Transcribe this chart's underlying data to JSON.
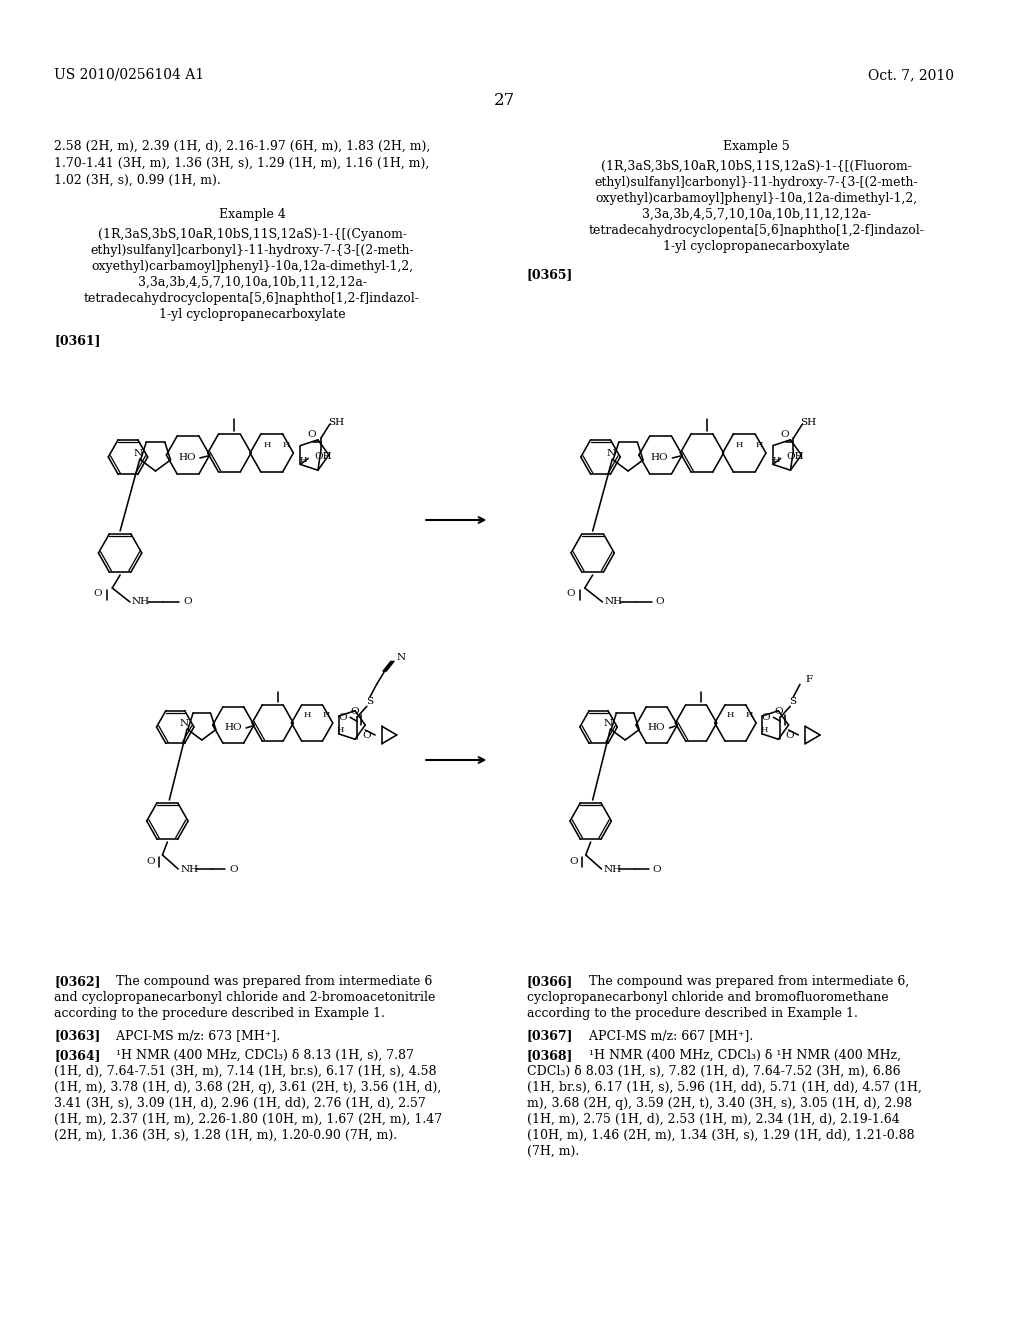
{
  "header_left": "US 2010/0256104 A1",
  "header_right": "Oct. 7, 2010",
  "page_number": "27",
  "bg": "#ffffff",
  "fg": "#000000",
  "cont_line1": "2.58 (2H, m), 2.39 (1H, d), 2.16-1.97 (6H, m), 1.83 (2H, m),",
  "cont_line2": "1.70-1.41 (3H, m), 1.36 (3H, s), 1.29 (1H, m), 1.16 (1H, m),",
  "cont_line3": "1.02 (3H, s), 0.99 (1H, m).",
  "ex4_title": "Example 4",
  "ex4_l1": "(1R,3aS,3bS,10aR,10bS,11S,12aS)-1-{[(Cyanom-",
  "ex4_l2": "ethyl)sulfanyl]carbonyl}-11-hydroxy-7-{3-[(2-meth-",
  "ex4_l3": "oxyethyl)carbamoyl]phenyl}-10a,12a-dimethyl-1,2,",
  "ex4_l4": "3,3a,3b,4,5,7,10,10a,10b,11,12,12a-",
  "ex4_l5": "tetradecahydrocyclopenta[5,6]naphtho[1,2-f]indazol-",
  "ex4_l6": "1-yl cyclopropanecarboxylate",
  "p0361": "[0361]",
  "ex5_title": "Example 5",
  "ex5_l1": "(1R,3aS,3bS,10aR,10bS,11S,12aS)-1-{[(Fluorom-",
  "ex5_l2": "ethyl)sulfanyl]carbonyl}-11-hydroxy-7-{3-[(2-meth-",
  "ex5_l3": "oxyethyl)carbamoyl]phenyl}-10a,12a-dimethyl-1,2,",
  "ex5_l4": "3,3a,3b,4,5,7,10,10a,10b,11,12,12a-",
  "ex5_l5": "tetradecahydrocyclopenta[5,6]naphtho[1,2-f]indazol-",
  "ex5_l6": "1-yl cyclopropanecarboxylate",
  "p0365": "[0365]",
  "p0362b": "[0362]",
  "p0362t": "   The compound was prepared from intermediate 6\nand cyclopropanecarbonyl chloride and 2-bromoacetonitrile\naccording to the procedure described in Example 1.",
  "p0363b": "[0363]",
  "p0363t": "   APCI-MS m/z: 673 [MH⁺].",
  "p0364b": "[0364]",
  "p0364t": "   ¹H NMR (400 MHz, CDCl₃) δ 8.13 (1H, s), 7.87\n(1H, d), 7.64-7.51 (3H, m), 7.14 (1H, br.s), 6.17 (1H, s), 4.58\n(1H, m), 3.78 (1H, d), 3.68 (2H, q), 3.61 (2H, t), 3.56 (1H, d),\n3.41 (3H, s), 3.09 (1H, d), 2.96 (1H, dd), 2.76 (1H, d), 2.57\n(1H, m), 2.37 (1H, m), 2.26-1.80 (10H, m), 1.67 (2H, m), 1.47\n(2H, m), 1.36 (3H, s), 1.28 (1H, m), 1.20-0.90 (7H, m).",
  "p0366b": "[0366]",
  "p0366t": "   The compound was prepared from intermediate 6,\ncyclopropanecarbonyl chloride and bromofluoromethane\naccording to the procedure described in Example 1.",
  "p0367b": "[0367]",
  "p0367t": "   APCI-MS m/z: 667 [MH⁺].",
  "p0368b": "[0368]",
  "p0368t": "   ¹H NMR (400 MHz, CDCl₃) δ ¹H NMR (400 MHz,\nCDCl₃) δ 8.03 (1H, s), 7.82 (1H, d), 7.64-7.52 (3H, m), 6.86\n(1H, br.s), 6.17 (1H, s), 5.96 (1H, dd), 5.71 (1H, dd), 4.57 (1H,\nm), 3.68 (2H, q), 3.59 (2H, t), 3.40 (3H, s), 3.05 (1H, d), 2.98\n(1H, m), 2.75 (1H, d), 2.53 (1H, m), 2.34 (1H, d), 2.19-1.64\n(10H, m), 1.46 (2H, m), 1.34 (3H, s), 1.29 (1H, dd), 1.21-0.88\n(7H, m).",
  "lmargin": 55,
  "rmargin": 969,
  "col_split": 512,
  "rmargin_r": 969,
  "lmargin_r": 535
}
